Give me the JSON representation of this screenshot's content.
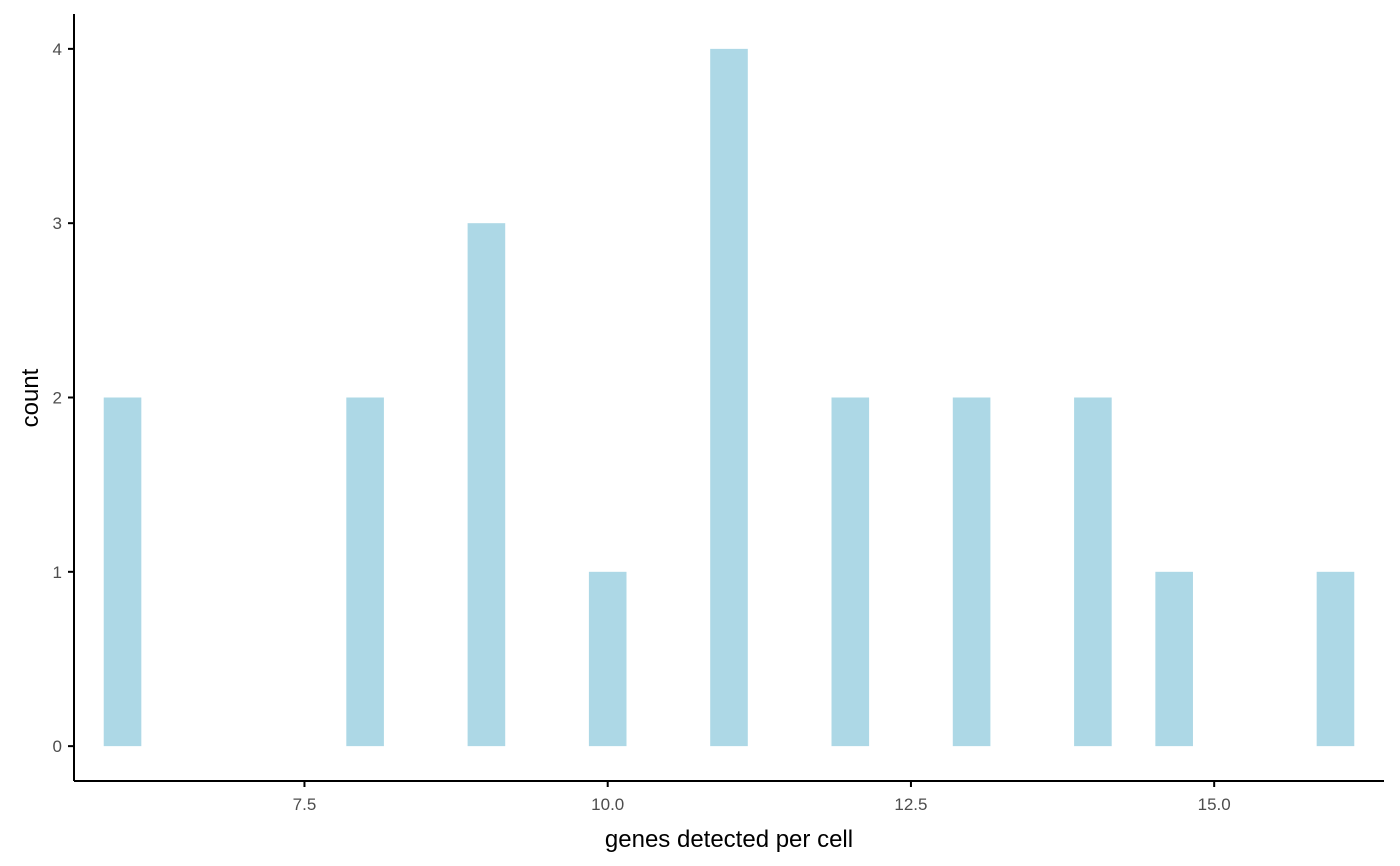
{
  "chart_data": {
    "type": "bar",
    "title": "",
    "xlabel": "genes detected per cell",
    "ylabel": "count",
    "x": [
      6,
      8,
      9,
      10,
      11,
      12,
      13,
      14,
      14.67,
      16
    ],
    "values": [
      2,
      2,
      3,
      1,
      4,
      2,
      2,
      2,
      1,
      1
    ],
    "bin_width": 0.31,
    "xlim": [
      5.6,
      16.4
    ],
    "ylim": [
      -0.2,
      4.2
    ],
    "x_ticks": [
      7.5,
      10.0,
      12.5,
      15.0
    ],
    "x_tick_labels": [
      "7.5",
      "10.0",
      "12.5",
      "15.0"
    ],
    "y_ticks": [
      0,
      1,
      2,
      3,
      4
    ],
    "y_tick_labels": [
      "0",
      "1",
      "2",
      "3",
      "4"
    ],
    "bar_color": "#add8e6",
    "axis_color": "#000000",
    "tick_label_color": "#4d4d4d",
    "background_color": "#ffffff",
    "grid": false,
    "legend": "none"
  }
}
